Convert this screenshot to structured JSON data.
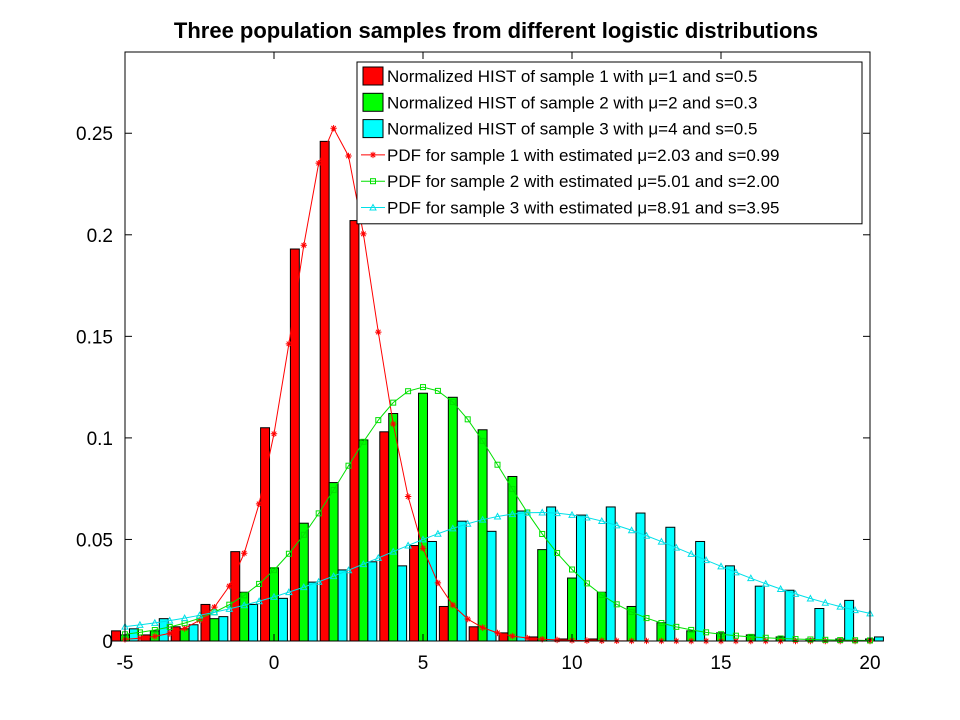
{
  "chart_data": {
    "type": "bar",
    "title": "Three population samples from different logistic distributions",
    "xlabel": "",
    "ylabel": "",
    "xlim": [
      -5,
      20
    ],
    "ylim": [
      0,
      0.29
    ],
    "xticks": [
      "-5",
      "0",
      "5",
      "10",
      "15",
      "20"
    ],
    "yticks": [
      "0",
      "0.05",
      "0.1",
      "0.15",
      "0.2",
      "0.25"
    ],
    "grid": false,
    "legend_position": "top-right",
    "histograms": [
      {
        "name": "Normalized HIST of sample 1 with μ=1 and s=0.5",
        "color": "#ff0000",
        "x": [
          -5,
          -4,
          -3,
          -2,
          -1,
          0,
          1,
          2,
          3,
          4,
          5,
          6,
          7,
          8,
          9,
          10,
          11,
          12,
          13,
          14,
          15,
          16,
          17,
          18,
          19,
          20
        ],
        "values": [
          0.005,
          0.003,
          0.007,
          0.018,
          0.044,
          0.105,
          0.193,
          0.246,
          0.207,
          0.103,
          0.047,
          0.017,
          0.007,
          0.004,
          0.002,
          0.001,
          0.001,
          0,
          0,
          0,
          0,
          0,
          0,
          0,
          0,
          0
        ]
      },
      {
        "name": "Normalized HIST of sample 2 with μ=2 and s=0.3",
        "color": "#00ff00",
        "x": [
          -5,
          -4,
          -3,
          -2,
          -1,
          0,
          1,
          2,
          3,
          4,
          5,
          6,
          7,
          8,
          9,
          10,
          11,
          12,
          13,
          14,
          15,
          16,
          17,
          18,
          19,
          20
        ],
        "values": [
          0.003,
          0.005,
          0.006,
          0.011,
          0.024,
          0.036,
          0.058,
          0.078,
          0.099,
          0.112,
          0.122,
          0.12,
          0.104,
          0.081,
          0.045,
          0.031,
          0.024,
          0.017,
          0.009,
          0.005,
          0.004,
          0.003,
          0.002,
          0.001,
          0.001,
          0.001
        ]
      },
      {
        "name": "Normalized HIST of sample 3 with μ=4 and s=0.5",
        "color": "#00ffff",
        "x": [
          -5,
          -4,
          -3,
          -2,
          -1,
          0,
          1,
          2,
          3,
          4,
          5,
          6,
          7,
          8,
          9,
          10,
          11,
          12,
          13,
          14,
          15,
          16,
          17,
          18,
          19,
          20
        ],
        "values": [
          0.006,
          0.011,
          0.008,
          0.012,
          0.018,
          0.021,
          0.029,
          0.035,
          0.039,
          0.037,
          0.049,
          0.059,
          0.054,
          0.064,
          0.066,
          0.062,
          0.066,
          0.063,
          0.056,
          0.049,
          0.037,
          0.027,
          0.025,
          0.016,
          0.02,
          0.002
        ]
      }
    ],
    "pdfs": [
      {
        "name": "PDF for sample 1 with estimated μ=2.03 and s=0.99",
        "color": "#ff0000",
        "marker": "star",
        "mu": 2.03,
        "s": 0.99
      },
      {
        "name": "PDF for sample 2 with estimated μ=5.01 and s=2.00",
        "color": "#00e000",
        "marker": "square",
        "mu": 5.01,
        "s": 2.0
      },
      {
        "name": "PDF for sample 3 with estimated μ=8.91 and s=3.95",
        "color": "#00e0e8",
        "marker": "triangle",
        "mu": 8.91,
        "s": 3.95
      }
    ]
  }
}
